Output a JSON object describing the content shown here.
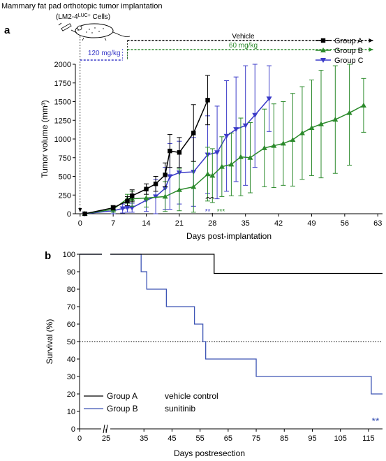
{
  "header": {
    "line1": "Mammary fat pad orthotopic tumor implantation",
    "line2_pre": "(LM2-4",
    "line2_sup": "LUC+",
    "line2_post": " Cells)"
  },
  "colors": {
    "groupA": "#000000",
    "groupB": "#2b8a2b",
    "groupC": "#3a3ac8",
    "survB": "#3d55b5"
  },
  "chart_data": [
    {
      "type": "line",
      "panel": "a",
      "xlabel": "Days post-implantation",
      "ylabel": "Tumor volume (mm³)",
      "xlim": [
        -1,
        64
      ],
      "ylim": [
        0,
        2000
      ],
      "xticks": [
        0,
        7,
        14,
        21,
        28,
        35,
        42,
        49,
        56,
        63
      ],
      "yticks": [
        0,
        250,
        500,
        750,
        1000,
        1250,
        1500,
        1750,
        2000
      ],
      "legend_position": "top-right",
      "treatments": [
        {
          "label": "120 mg/kg",
          "color": "#3a3ac8",
          "x_start": 0,
          "x_end": 9
        },
        {
          "label": "Vehicle",
          "color": "#000000",
          "x_start": 10,
          "x_end": 62
        },
        {
          "label": "60 mg/kg",
          "color": "#2b8a2b",
          "x_start": 10,
          "x_end": 62
        }
      ],
      "series": [
        {
          "name": "Group A",
          "color": "#000000",
          "marker": "square",
          "x": [
            1,
            7,
            10,
            11,
            14,
            16,
            18,
            19,
            21,
            24,
            27
          ],
          "y": [
            0,
            80,
            170,
            240,
            330,
            400,
            520,
            840,
            820,
            1080,
            1520
          ],
          "err": [
            0,
            30,
            60,
            80,
            70,
            100,
            160,
            220,
            200,
            380,
            330
          ]
        },
        {
          "name": "Group B",
          "color": "#2b8a2b",
          "marker": "triangle-up",
          "x": [
            1,
            7,
            10,
            11,
            14,
            18,
            21,
            24,
            27,
            28,
            30,
            32,
            34,
            36,
            39,
            41,
            43,
            45,
            47,
            49,
            51,
            54,
            57,
            60
          ],
          "y": [
            0,
            60,
            200,
            200,
            210,
            230,
            320,
            360,
            530,
            510,
            630,
            660,
            760,
            750,
            880,
            910,
            940,
            990,
            1080,
            1150,
            1200,
            1260,
            1350,
            1450
          ],
          "err": [
            0,
            40,
            60,
            100,
            120,
            200,
            280,
            340,
            360,
            360,
            400,
            420,
            520,
            470,
            520,
            560,
            560,
            620,
            620,
            640,
            720,
            720,
            700,
            360
          ]
        },
        {
          "name": "Group C",
          "color": "#3a3ac8",
          "marker": "triangle-down",
          "x": [
            1,
            7,
            9,
            10,
            11,
            14,
            16,
            18,
            19,
            21,
            24,
            27,
            29,
            31,
            33,
            35,
            37,
            40
          ],
          "y": [
            0,
            40,
            70,
            80,
            80,
            180,
            230,
            340,
            500,
            550,
            560,
            790,
            820,
            1040,
            1130,
            1180,
            1320,
            1540
          ],
          "err": [
            0,
            40,
            60,
            60,
            60,
            150,
            230,
            280,
            440,
            420,
            460,
            520,
            620,
            740,
            700,
            800,
            700,
            440
          ]
        }
      ],
      "annotations": [
        {
          "text": "**",
          "color": "#3a3ac8",
          "x": 27,
          "y": 130
        },
        {
          "text": ",",
          "color": "#000000",
          "x": 28,
          "y": 130
        },
        {
          "text": "***",
          "color": "#2b8a2b",
          "x": 29.8,
          "y": 130
        }
      ]
    },
    {
      "type": "line",
      "panel": "b",
      "step": true,
      "xlabel": "Days postresection",
      "ylabel": "Survival (%)",
      "ylim": [
        0,
        100
      ],
      "xticks": [
        0,
        25,
        35,
        45,
        55,
        65,
        75,
        85,
        95,
        105,
        115
      ],
      "yticks": [
        0,
        10,
        20,
        30,
        40,
        50,
        60,
        70,
        80,
        90,
        100
      ],
      "axis_break": true,
      "reference_line": {
        "y": 50,
        "style": "dotted"
      },
      "legend_position": "bottom-left",
      "series": [
        {
          "name": "Group A",
          "description": "vehicle control",
          "color": "#000000",
          "x": [
            0,
            60,
            60,
            120
          ],
          "y": [
            100,
            100,
            89,
            89
          ]
        },
        {
          "name": "Group B",
          "description": "sunitinib",
          "color": "#3d55b5",
          "x": [
            0,
            34,
            34,
            36,
            36,
            43,
            43,
            53,
            53,
            56,
            56,
            57,
            57,
            75,
            75,
            116,
            116,
            120
          ],
          "y": [
            100,
            100,
            90,
            90,
            80,
            80,
            70,
            70,
            60,
            60,
            50,
            50,
            40,
            40,
            30,
            30,
            20,
            20
          ]
        }
      ],
      "annotations": [
        {
          "text": "**",
          "color": "#3d55b5",
          "x": 119,
          "y": 5
        }
      ]
    }
  ]
}
